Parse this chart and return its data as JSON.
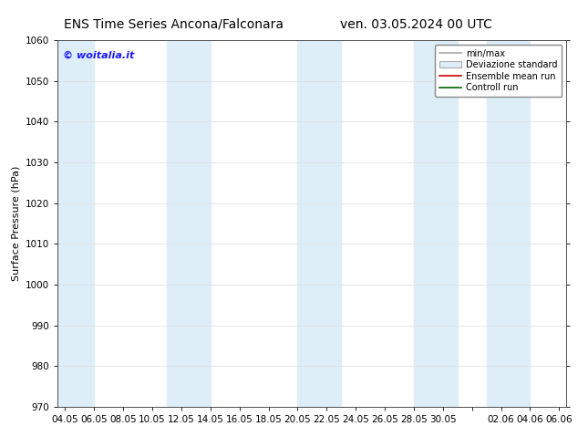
{
  "title_left": "ENS Time Series Ancona/Falconara",
  "title_right": "ven. 03.05.2024 00 UTC",
  "ylabel": "Surface Pressure (hPa)",
  "ylim": [
    970,
    1060
  ],
  "yticks": [
    970,
    980,
    990,
    1000,
    1010,
    1020,
    1030,
    1040,
    1050,
    1060
  ],
  "xtick_labels": [
    "04.05",
    "06.05",
    "08.05",
    "10.05",
    "12.05",
    "14.05",
    "16.05",
    "18.05",
    "20.05",
    "22.05",
    "24.05",
    "26.05",
    "28.05",
    "30.05",
    "",
    "02.06",
    "04.06",
    "06.06"
  ],
  "xtick_positions": [
    0,
    2,
    4,
    6,
    8,
    10,
    12,
    14,
    16,
    18,
    20,
    22,
    24,
    26,
    28,
    30,
    32,
    34
  ],
  "x_min": -0.5,
  "x_max": 34.5,
  "band_color": "#ddeef8",
  "background_color": "#ffffff",
  "watermark": "© woitalia.it",
  "watermark_color": "#1a1aff",
  "legend_items": [
    "min/max",
    "Deviazione standard",
    "Ensemble mean run",
    "Controll run"
  ],
  "legend_colors_line": [
    "#aaaaaa",
    "#bbccdd",
    "#cc0000",
    "#006600"
  ],
  "title_fontsize": 10,
  "axis_fontsize": 8,
  "tick_fontsize": 7.5,
  "band_centers": [
    0.5,
    8.5,
    17.5,
    25.5,
    30.5
  ],
  "band_half_widths": [
    1.5,
    1.5,
    1.5,
    1.5,
    1.5
  ]
}
